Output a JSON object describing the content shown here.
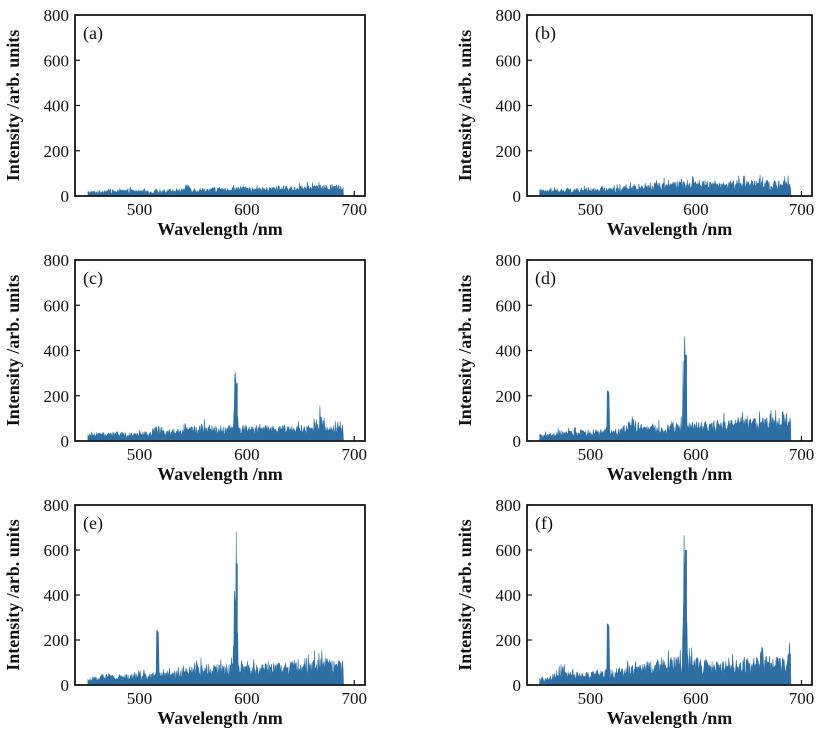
{
  "chart_data": [
    {
      "type": "line",
      "panel_label": "(a)",
      "xlabel": "Wavelength /nm",
      "ylabel": "Intensity /arb. units",
      "xlim": [
        440,
        710
      ],
      "ylim": [
        0,
        800
      ],
      "xticks": [
        500,
        600,
        700
      ],
      "yticks": [
        0,
        200,
        400,
        600,
        800
      ],
      "grid": false,
      "series": [
        {
          "color": "#2e6fa3",
          "x": [
            452,
            460,
            470,
            480,
            490,
            500,
            510,
            520,
            530,
            540,
            545,
            550,
            560,
            570,
            580,
            590,
            600,
            610,
            620,
            630,
            640,
            650,
            660,
            670,
            680,
            690
          ],
          "y": [
            18,
            20,
            25,
            22,
            26,
            24,
            20,
            24,
            26,
            28,
            48,
            30,
            30,
            32,
            30,
            34,
            35,
            32,
            34,
            38,
            36,
            38,
            40,
            42,
            40,
            45
          ]
        }
      ]
    },
    {
      "type": "line",
      "panel_label": "(b)",
      "xlabel": "Wavelength /nm",
      "ylabel": "Intensity /arb. units",
      "xlim": [
        440,
        710
      ],
      "ylim": [
        0,
        800
      ],
      "xticks": [
        500,
        600,
        700
      ],
      "yticks": [
        0,
        200,
        400,
        600,
        800
      ],
      "grid": false,
      "series": [
        {
          "color": "#2e6fa3",
          "x": [
            452,
            460,
            470,
            480,
            490,
            500,
            510,
            520,
            530,
            540,
            550,
            560,
            570,
            580,
            590,
            600,
            610,
            620,
            630,
            640,
            650,
            660,
            670,
            680,
            690
          ],
          "y": [
            22,
            24,
            26,
            28,
            30,
            28,
            30,
            32,
            36,
            40,
            48,
            50,
            54,
            56,
            62,
            55,
            60,
            58,
            55,
            62,
            60,
            65,
            58,
            55,
            60
          ]
        }
      ]
    },
    {
      "type": "line",
      "panel_label": "(c)",
      "xlabel": "Wavelength /nm",
      "ylabel": "Intensity /arb. units",
      "xlim": [
        440,
        710
      ],
      "ylim": [
        0,
        800
      ],
      "xticks": [
        500,
        600,
        700
      ],
      "yticks": [
        0,
        200,
        400,
        600,
        800
      ],
      "grid": false,
      "series": [
        {
          "color": "#2e6fa3",
          "x": [
            452,
            460,
            470,
            480,
            490,
            500,
            510,
            515,
            520,
            530,
            540,
            550,
            560,
            570,
            580,
            587,
            589,
            590,
            592,
            600,
            610,
            620,
            630,
            640,
            650,
            660,
            668,
            675,
            685,
            690
          ],
          "y": [
            25,
            30,
            32,
            35,
            32,
            35,
            38,
            55,
            40,
            45,
            50,
            55,
            62,
            60,
            58,
            60,
            270,
            255,
            60,
            58,
            55,
            60,
            55,
            58,
            62,
            60,
            100,
            60,
            58,
            50
          ]
        }
      ]
    },
    {
      "type": "line",
      "panel_label": "(d)",
      "xlabel": "Wavelength /nm",
      "ylabel": "Intensity /arb. units",
      "xlim": [
        440,
        710
      ],
      "ylim": [
        0,
        800
      ],
      "xticks": [
        500,
        600,
        700
      ],
      "yticks": [
        0,
        200,
        400,
        600,
        800
      ],
      "grid": false,
      "series": [
        {
          "color": "#2e6fa3",
          "x": [
            452,
            460,
            470,
            480,
            490,
            500,
            510,
            515,
            517,
            520,
            530,
            540,
            550,
            560,
            570,
            580,
            587,
            589,
            590,
            592,
            600,
            610,
            620,
            630,
            640,
            650,
            660,
            670,
            680,
            683,
            690
          ],
          "y": [
            25,
            28,
            35,
            38,
            40,
            42,
            45,
            50,
            220,
            48,
            50,
            95,
            55,
            60,
            62,
            65,
            70,
            420,
            380,
            70,
            72,
            75,
            78,
            80,
            82,
            85,
            88,
            90,
            95,
            120,
            90
          ]
        }
      ]
    },
    {
      "type": "line",
      "panel_label": "(e)",
      "xlabel": "Wavelength /nm",
      "ylabel": "Intensity /arb. units",
      "xlim": [
        440,
        710
      ],
      "ylim": [
        0,
        800
      ],
      "xticks": [
        500,
        600,
        700
      ],
      "yticks": [
        0,
        200,
        400,
        600,
        800
      ],
      "grid": false,
      "series": [
        {
          "color": "#2e6fa3",
          "x": [
            452,
            460,
            470,
            480,
            490,
            500,
            510,
            515,
            517,
            520,
            530,
            540,
            550,
            560,
            570,
            580,
            587,
            589,
            590,
            592,
            600,
            610,
            620,
            630,
            640,
            650,
            660,
            670,
            680,
            690
          ],
          "y": [
            25,
            30,
            45,
            40,
            42,
            45,
            45,
            50,
            240,
            48,
            55,
            65,
            70,
            80,
            78,
            75,
            80,
            630,
            540,
            80,
            78,
            82,
            80,
            85,
            90,
            110,
            95,
            100,
            98,
            95
          ]
        }
      ]
    },
    {
      "type": "line",
      "panel_label": "(f)",
      "xlabel": "Wavelength /nm",
      "ylabel": "Intensity /arb. units",
      "xlim": [
        440,
        710
      ],
      "ylim": [
        0,
        800
      ],
      "xticks": [
        500,
        600,
        700
      ],
      "yticks": [
        0,
        200,
        400,
        600,
        800
      ],
      "grid": false,
      "series": [
        {
          "color": "#2e6fa3",
          "x": [
            452,
            460,
            470,
            475,
            480,
            490,
            500,
            510,
            515,
            517,
            520,
            530,
            540,
            550,
            560,
            570,
            580,
            587,
            589,
            590,
            592,
            600,
            610,
            620,
            630,
            640,
            650,
            660,
            670,
            680,
            690
          ],
          "y": [
            25,
            30,
            60,
            75,
            50,
            48,
            50,
            55,
            60,
            270,
            60,
            65,
            75,
            85,
            95,
            100,
            105,
            110,
            690,
            600,
            110,
            105,
            95,
            90,
            92,
            95,
            100,
            105,
            110,
            108,
            130
          ]
        }
      ]
    }
  ]
}
